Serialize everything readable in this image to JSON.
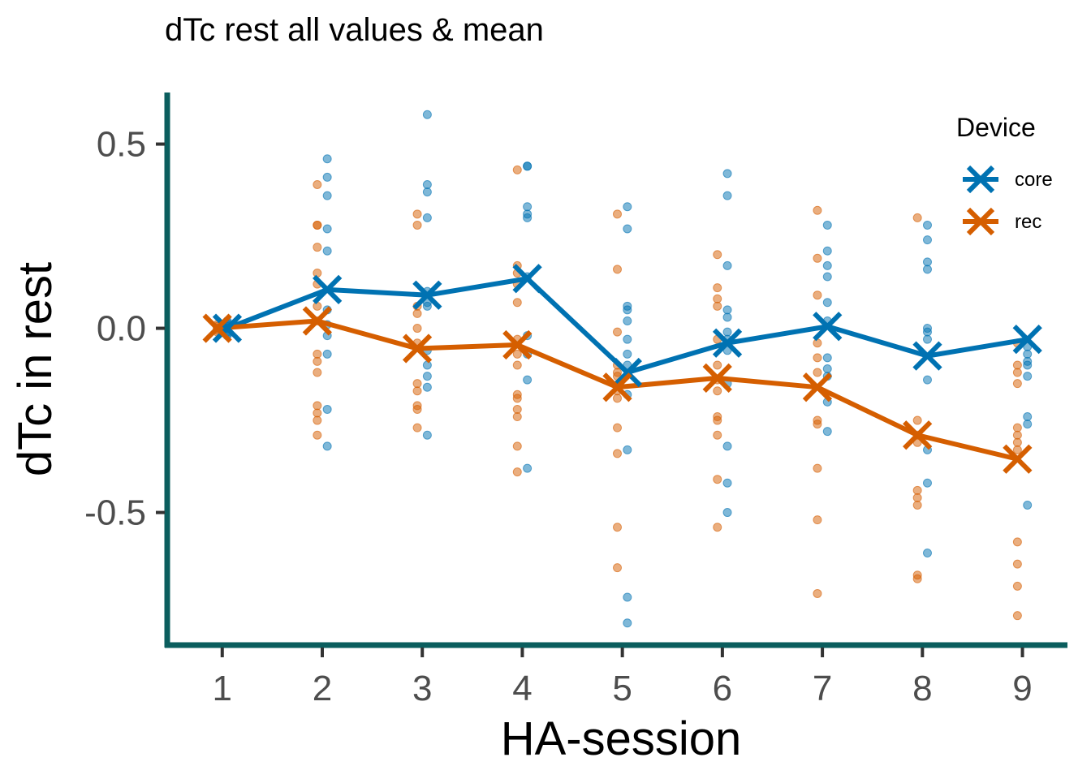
{
  "chart_data": {
    "type": "line",
    "title": "dTc rest all values & mean",
    "xlabel": "HA-session",
    "ylabel": "dTc in rest",
    "x": [
      1,
      2,
      3,
      4,
      5,
      6,
      7,
      8,
      9
    ],
    "x_tick_labels": [
      "1",
      "2",
      "3",
      "4",
      "5",
      "6",
      "7",
      "8",
      "9"
    ],
    "xlim": [
      0.45,
      9.45
    ],
    "ylim": [
      -0.86,
      0.64
    ],
    "y_ticks": [
      0.5,
      0.0,
      -0.5
    ],
    "y_tick_labels": [
      "0.5",
      "0.0",
      "-0.5"
    ],
    "grid": false,
    "legend": {
      "title": "Device",
      "position": "top-right",
      "marker": "x"
    },
    "colors": {
      "axis": "#0b5e5e",
      "tick": "#333333"
    },
    "series": [
      {
        "name": "core",
        "color": "#0072B2",
        "mean": [
          0.0,
          0.105,
          0.09,
          0.135,
          -0.12,
          -0.04,
          0.005,
          -0.075,
          -0.03
        ],
        "points": [
          [
            0.02,
            -0.01,
            -0.02,
            0.01,
            0.0,
            -0.015,
            0.005,
            0.015
          ],
          [
            0.46,
            0.41,
            0.36,
            0.27,
            0.21,
            0.05,
            0.01,
            -0.02,
            -0.07,
            -0.22,
            -0.32
          ],
          [
            0.58,
            0.39,
            0.37,
            0.3,
            0.1,
            0.07,
            0.06,
            -0.06,
            -0.1,
            -0.13,
            -0.16,
            -0.29
          ],
          [
            0.44,
            0.44,
            0.33,
            0.31,
            0.3,
            0.14,
            -0.02,
            -0.07,
            -0.14,
            -0.38
          ],
          [
            0.33,
            0.27,
            0.06,
            0.05,
            0.02,
            -0.03,
            -0.07,
            -0.1,
            -0.18,
            -0.33,
            -0.73,
            -0.8
          ],
          [
            0.42,
            0.36,
            0.17,
            0.05,
            0.03,
            -0.01,
            -0.03,
            -0.06,
            -0.15,
            -0.32,
            -0.42,
            -0.5
          ],
          [
            0.28,
            0.21,
            0.17,
            0.14,
            0.07,
            0.02,
            -0.08,
            -0.11,
            -0.13,
            -0.2,
            -0.28
          ],
          [
            0.28,
            0.24,
            0.18,
            0.16,
            0.0,
            -0.01,
            -0.03,
            -0.14,
            -0.33,
            -0.42,
            -0.61
          ],
          [
            -0.05,
            -0.07,
            -0.09,
            -0.1,
            -0.13,
            -0.24,
            -0.26,
            -0.48
          ]
        ]
      },
      {
        "name": "rec",
        "color": "#D55E00",
        "mean": [
          0.0,
          0.02,
          -0.055,
          -0.045,
          -0.16,
          -0.135,
          -0.16,
          -0.29,
          -0.355
        ],
        "points": [
          [
            0.0,
            0.01,
            -0.01,
            0.005,
            -0.005
          ],
          [
            0.39,
            0.28,
            0.28,
            0.22,
            0.15,
            0.12,
            0.06,
            0.02,
            -0.07,
            -0.09,
            -0.12,
            -0.21,
            -0.23,
            -0.25,
            -0.29
          ],
          [
            0.31,
            0.28,
            0.06,
            0.04,
            0.0,
            -0.04,
            -0.15,
            -0.17,
            -0.21,
            -0.22,
            -0.27
          ],
          [
            0.43,
            0.17,
            0.15,
            0.12,
            0.07,
            -0.03,
            -0.07,
            -0.1,
            -0.18,
            -0.19,
            -0.22,
            -0.24,
            -0.32,
            -0.39
          ],
          [
            0.31,
            0.16,
            -0.01,
            -0.1,
            -0.12,
            -0.13,
            -0.17,
            -0.19,
            -0.27,
            -0.34,
            -0.54,
            -0.65
          ],
          [
            0.2,
            0.11,
            0.08,
            0.06,
            -0.03,
            -0.1,
            -0.14,
            -0.17,
            -0.24,
            -0.25,
            -0.29,
            -0.41,
            -0.54
          ],
          [
            0.32,
            0.19,
            0.09,
            -0.04,
            -0.08,
            -0.12,
            -0.25,
            -0.26,
            -0.38,
            -0.52,
            -0.72
          ],
          [
            0.3,
            -0.25,
            -0.29,
            -0.31,
            -0.44,
            -0.46,
            -0.48,
            -0.67,
            -0.68
          ],
          [
            -0.04,
            -0.1,
            -0.12,
            -0.15,
            -0.27,
            -0.29,
            -0.31,
            -0.33,
            -0.58,
            -0.64,
            -0.7,
            -0.78
          ]
        ]
      }
    ]
  }
}
